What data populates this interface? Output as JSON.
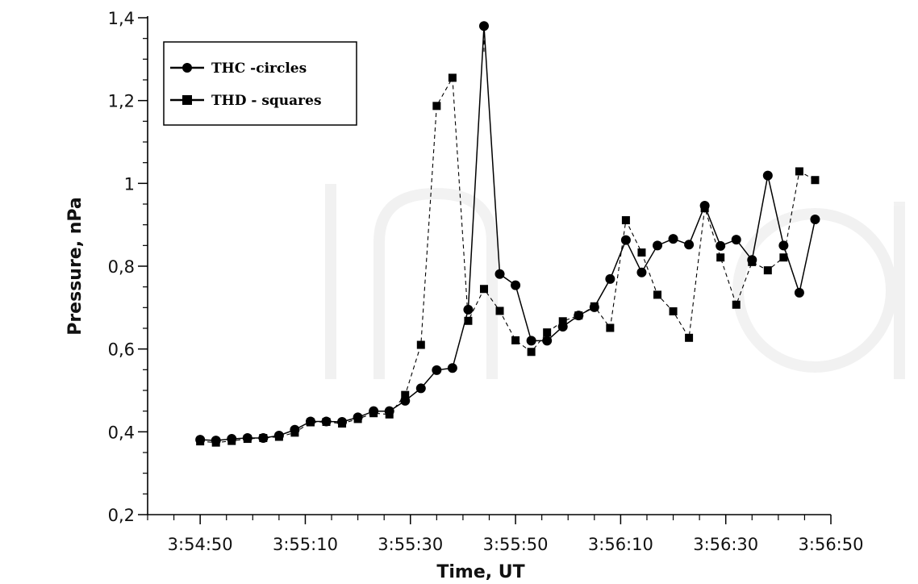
{
  "chart_data": {
    "type": "line",
    "xlabel": "Time, UT",
    "ylabel": "Pressure, nPa",
    "xlim_seconds": [
      -10,
      120
    ],
    "ylim": [
      0.2,
      1.4
    ],
    "x_ticks": [
      {
        "seconds": 0,
        "label": "3:54:50"
      },
      {
        "seconds": 20,
        "label": "3:55:10"
      },
      {
        "seconds": 40,
        "label": "3:55:30"
      },
      {
        "seconds": 60,
        "label": "3:55:50"
      },
      {
        "seconds": 80,
        "label": "3:56:10"
      },
      {
        "seconds": 100,
        "label": "3:56:30"
      },
      {
        "seconds": 120,
        "label": "3:56:50"
      }
    ],
    "y_ticks": [
      {
        "value": 0.2,
        "label": "0,2"
      },
      {
        "value": 0.4,
        "label": "0,4"
      },
      {
        "value": 0.6,
        "label": "0,6"
      },
      {
        "value": 0.8,
        "label": "0,8"
      },
      {
        "value": 1.0,
        "label": "1"
      },
      {
        "value": 1.2,
        "label": "1,2"
      },
      {
        "value": 1.4,
        "label": "1,4"
      }
    ],
    "legend_position": "top-left",
    "grid": false,
    "series": [
      {
        "name": "THC -circles",
        "marker": "circle",
        "line": "solid",
        "points": [
          [
            0,
            0.381
          ],
          [
            3,
            0.379
          ],
          [
            6,
            0.383
          ],
          [
            9,
            0.385
          ],
          [
            12,
            0.385
          ],
          [
            15,
            0.391
          ],
          [
            18,
            0.405
          ],
          [
            21,
            0.425
          ],
          [
            24,
            0.425
          ],
          [
            27,
            0.424
          ],
          [
            30,
            0.435
          ],
          [
            33,
            0.45
          ],
          [
            36,
            0.45
          ],
          [
            39,
            0.475
          ],
          [
            42,
            0.505
          ],
          [
            45,
            0.549
          ],
          [
            48,
            0.554
          ],
          [
            51,
            0.695
          ],
          [
            54,
            1.38
          ],
          [
            57,
            0.781
          ],
          [
            60,
            0.754
          ],
          [
            63,
            0.62
          ],
          [
            66,
            0.62
          ],
          [
            69,
            0.654
          ],
          [
            72,
            0.681
          ],
          [
            75,
            0.701
          ],
          [
            78,
            0.769
          ],
          [
            81,
            0.863
          ],
          [
            84,
            0.785
          ],
          [
            87,
            0.85
          ],
          [
            90,
            0.866
          ],
          [
            93,
            0.852
          ],
          [
            96,
            0.946
          ],
          [
            99,
            0.849
          ],
          [
            102,
            0.864
          ],
          [
            105,
            0.815
          ],
          [
            108,
            1.019
          ],
          [
            111,
            0.85
          ],
          [
            114,
            0.736
          ],
          [
            117,
            0.913
          ]
        ]
      },
      {
        "name": "THD - squares",
        "marker": "square",
        "line": "dashed",
        "points": [
          [
            0,
            0.377
          ],
          [
            3,
            0.374
          ],
          [
            6,
            0.378
          ],
          [
            9,
            0.383
          ],
          [
            12,
            0.385
          ],
          [
            15,
            0.388
          ],
          [
            18,
            0.398
          ],
          [
            21,
            0.423
          ],
          [
            24,
            0.424
          ],
          [
            27,
            0.42
          ],
          [
            30,
            0.431
          ],
          [
            33,
            0.445
          ],
          [
            36,
            0.442
          ],
          [
            39,
            0.489
          ],
          [
            42,
            0.61
          ],
          [
            45,
            1.187
          ],
          [
            48,
            1.255
          ],
          [
            51,
            0.668
          ],
          [
            54,
            0.745
          ],
          [
            57,
            0.692
          ],
          [
            60,
            0.621
          ],
          [
            63,
            0.593
          ],
          [
            66,
            0.64
          ],
          [
            69,
            0.667
          ],
          [
            72,
            0.681
          ],
          [
            75,
            0.703
          ],
          [
            78,
            0.651
          ],
          [
            81,
            0.911
          ],
          [
            84,
            0.833
          ],
          [
            87,
            0.731
          ],
          [
            90,
            0.691
          ],
          [
            93,
            0.627
          ],
          [
            96,
            0.94
          ],
          [
            99,
            0.821
          ],
          [
            102,
            0.707
          ],
          [
            105,
            0.81
          ],
          [
            108,
            0.79
          ],
          [
            111,
            0.821
          ],
          [
            114,
            1.029
          ],
          [
            117,
            1.008
          ]
        ],
        "extra_segments": [
          [
            [
              54,
              1.38
            ],
            [
              54,
              1.317
            ]
          ]
        ]
      }
    ]
  }
}
